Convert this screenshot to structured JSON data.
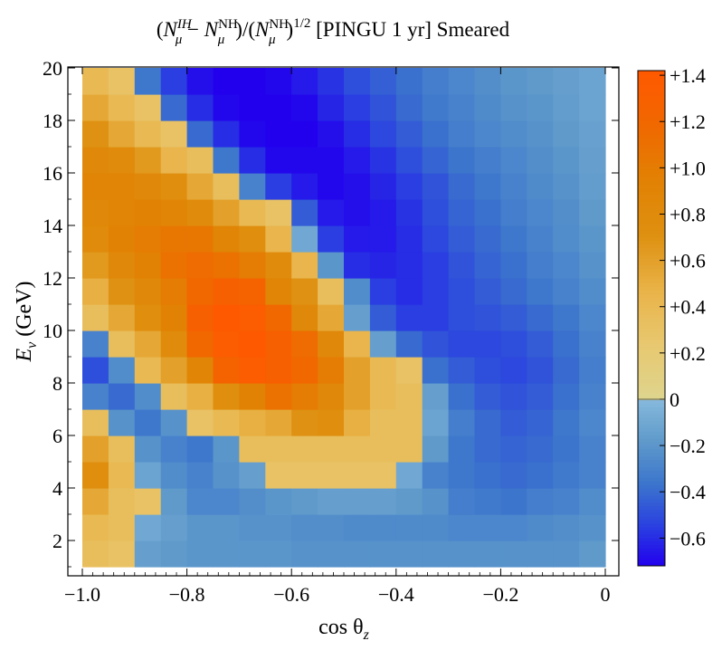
{
  "chart_data": {
    "type": "heatmap",
    "title_parts": {
      "open1": "(",
      "n1": "N",
      "n1_sub": "μ",
      "n1_sup": "IH",
      "minus": " − ",
      "n2": "N",
      "n2_sub": "μ",
      "n2_sup": "NH",
      "mid": ")/(",
      "n3": "N",
      "n3_sub": "μ",
      "n3_sup": "NH",
      "close": ")",
      "exp": "1/2",
      "rest": " [PINGU 1 yr] Smeared"
    },
    "xlabel_parts": {
      "main": "cos θ",
      "sub": "z"
    },
    "ylabel_parts": {
      "main": "E",
      "sub": "ν",
      "rest": " (GeV)"
    },
    "x_range": [
      -1.0,
      0.0
    ],
    "y_range": [
      1,
      20
    ],
    "x_ticks": [
      -1.0,
      -0.8,
      -0.6,
      -0.4,
      -0.2,
      0.0
    ],
    "x_tick_labels": [
      "−1.0",
      "−0.8",
      "−0.6",
      "−0.4",
      "−0.2",
      "0"
    ],
    "y_ticks": [
      2,
      4,
      6,
      8,
      10,
      12,
      14,
      16,
      18,
      20
    ],
    "y_tick_labels": [
      "2",
      "4",
      "6",
      "8",
      "10",
      "12",
      "14",
      "16",
      "18",
      "20"
    ],
    "x_bins": 20,
    "y_bins": 19,
    "z_comment": "rows from E=1-2 GeV (first) to E=19-20 GeV (last); columns from cosθ=-1.0 to 0.0",
    "z": [
      [
        0.35,
        0.3,
        -0.15,
        -0.18,
        -0.2,
        -0.2,
        -0.2,
        -0.2,
        -0.22,
        -0.22,
        -0.22,
        -0.22,
        -0.22,
        -0.22,
        -0.22,
        -0.22,
        -0.22,
        -0.22,
        -0.22,
        -0.18
      ],
      [
        0.4,
        0.35,
        -0.1,
        -0.15,
        -0.2,
        -0.2,
        -0.22,
        -0.22,
        -0.24,
        -0.24,
        -0.26,
        -0.26,
        -0.26,
        -0.26,
        -0.28,
        -0.28,
        -0.28,
        -0.26,
        -0.24,
        -0.22
      ],
      [
        0.55,
        0.35,
        0.3,
        -0.18,
        -0.28,
        -0.28,
        -0.24,
        -0.2,
        -0.18,
        -0.15,
        -0.15,
        -0.15,
        -0.18,
        -0.22,
        -0.32,
        -0.34,
        -0.36,
        -0.32,
        -0.3,
        -0.25
      ],
      [
        0.75,
        0.4,
        -0.12,
        -0.25,
        -0.3,
        -0.22,
        -0.15,
        0.3,
        0.3,
        0.3,
        0.3,
        0.3,
        -0.1,
        -0.3,
        -0.35,
        -0.38,
        -0.4,
        -0.38,
        -0.34,
        -0.3
      ],
      [
        0.6,
        0.35,
        -0.22,
        -0.3,
        -0.35,
        -0.2,
        0.35,
        0.35,
        0.35,
        0.35,
        0.35,
        0.35,
        0.35,
        -0.18,
        -0.35,
        -0.4,
        -0.42,
        -0.4,
        -0.36,
        -0.3
      ],
      [
        0.35,
        -0.22,
        -0.35,
        -0.22,
        0.3,
        0.4,
        0.5,
        0.55,
        0.7,
        0.75,
        0.5,
        0.35,
        0.35,
        -0.12,
        -0.32,
        -0.4,
        -0.45,
        -0.42,
        -0.35,
        -0.28
      ],
      [
        -0.3,
        -0.4,
        -0.25,
        0.35,
        0.5,
        0.75,
        0.95,
        1.1,
        1.0,
        0.85,
        0.6,
        0.4,
        0.35,
        -0.15,
        -0.38,
        -0.45,
        -0.48,
        -0.45,
        -0.38,
        -0.3
      ],
      [
        -0.5,
        -0.25,
        0.4,
        0.6,
        0.9,
        1.25,
        1.35,
        1.3,
        1.2,
        1.0,
        0.6,
        0.4,
        0.3,
        -0.38,
        -0.45,
        -0.5,
        -0.52,
        -0.48,
        -0.4,
        -0.32
      ],
      [
        -0.3,
        0.35,
        0.55,
        0.8,
        1.2,
        1.35,
        1.4,
        1.3,
        1.15,
        0.85,
        0.45,
        -0.15,
        -0.4,
        -0.48,
        -0.52,
        -0.52,
        -0.5,
        -0.45,
        -0.38,
        -0.3
      ],
      [
        0.35,
        0.55,
        0.75,
        0.95,
        1.3,
        1.4,
        1.35,
        1.2,
        0.85,
        0.55,
        -0.15,
        -0.45,
        -0.55,
        -0.55,
        -0.5,
        -0.48,
        -0.45,
        -0.4,
        -0.35,
        -0.28
      ],
      [
        0.5,
        0.7,
        0.85,
        1.0,
        1.2,
        1.3,
        1.25,
        0.9,
        0.7,
        0.35,
        -0.25,
        -0.55,
        -0.6,
        -0.55,
        -0.5,
        -0.45,
        -0.4,
        -0.35,
        -0.3,
        -0.25
      ],
      [
        0.65,
        0.85,
        0.95,
        1.1,
        1.15,
        1.1,
        1.0,
        0.8,
        0.45,
        -0.2,
        -0.6,
        -0.62,
        -0.6,
        -0.55,
        -0.48,
        -0.42,
        -0.38,
        -0.32,
        -0.28,
        -0.22
      ],
      [
        0.8,
        0.95,
        1.0,
        1.05,
        1.05,
        0.9,
        0.75,
        0.45,
        -0.1,
        -0.55,
        -0.65,
        -0.65,
        -0.6,
        -0.52,
        -0.45,
        -0.4,
        -0.35,
        -0.3,
        -0.25,
        -0.2
      ],
      [
        0.85,
        0.9,
        0.95,
        0.9,
        0.8,
        0.6,
        0.4,
        0.3,
        -0.45,
        -0.65,
        -0.68,
        -0.65,
        -0.58,
        -0.5,
        -0.42,
        -0.38,
        -0.32,
        -0.28,
        -0.24,
        -0.18
      ],
      [
        0.9,
        0.9,
        0.85,
        0.75,
        0.55,
        0.35,
        -0.3,
        -0.55,
        -0.65,
        -0.7,
        -0.68,
        -0.62,
        -0.55,
        -0.48,
        -0.4,
        -0.35,
        -0.3,
        -0.26,
        -0.22,
        -0.16
      ],
      [
        0.85,
        0.8,
        0.65,
        0.45,
        0.35,
        -0.35,
        -0.6,
        -0.7,
        -0.7,
        -0.7,
        -0.65,
        -0.58,
        -0.5,
        -0.42,
        -0.36,
        -0.32,
        -0.28,
        -0.24,
        -0.2,
        -0.15
      ],
      [
        0.7,
        0.55,
        0.4,
        0.3,
        -0.4,
        -0.6,
        -0.7,
        -0.72,
        -0.72,
        -0.68,
        -0.6,
        -0.52,
        -0.45,
        -0.38,
        -0.32,
        -0.28,
        -0.25,
        -0.22,
        -0.18,
        -0.14
      ],
      [
        0.55,
        0.4,
        0.3,
        -0.4,
        -0.6,
        -0.7,
        -0.72,
        -0.72,
        -0.7,
        -0.62,
        -0.55,
        -0.48,
        -0.4,
        -0.34,
        -0.3,
        -0.26,
        -0.22,
        -0.2,
        -0.16,
        -0.12
      ],
      [
        0.4,
        0.3,
        -0.35,
        -0.55,
        -0.68,
        -0.72,
        -0.72,
        -0.7,
        -0.65,
        -0.58,
        -0.5,
        -0.44,
        -0.38,
        -0.32,
        -0.28,
        -0.24,
        -0.2,
        -0.18,
        -0.15,
        -0.12
      ]
    ],
    "colorbar": {
      "range": [
        -0.72,
        1.42
      ],
      "positive_ticks": [
        0.2,
        0.4,
        0.6,
        0.8,
        1.0,
        1.2,
        1.4
      ],
      "positive_tick_labels": [
        "+0.2",
        "+0.4",
        "+0.6",
        "+0.8",
        "+1.0",
        "+1.2",
        "+1.4"
      ],
      "zero_label": "0",
      "negative_ticks": [
        -0.2,
        -0.4,
        -0.6
      ],
      "negative_tick_labels": [
        "−0.2",
        "−0.4",
        "−0.6"
      ]
    },
    "colors": {
      "positive_stops": [
        "#ded58e",
        "#e8c870",
        "#e9b348",
        "#de9010",
        "#e28204",
        "#f06800",
        "#ff5800"
      ],
      "negative_stops": [
        "#86b9dc",
        "#5f9acb",
        "#3c76cc",
        "#2a42e0",
        "#2200ee"
      ]
    }
  }
}
